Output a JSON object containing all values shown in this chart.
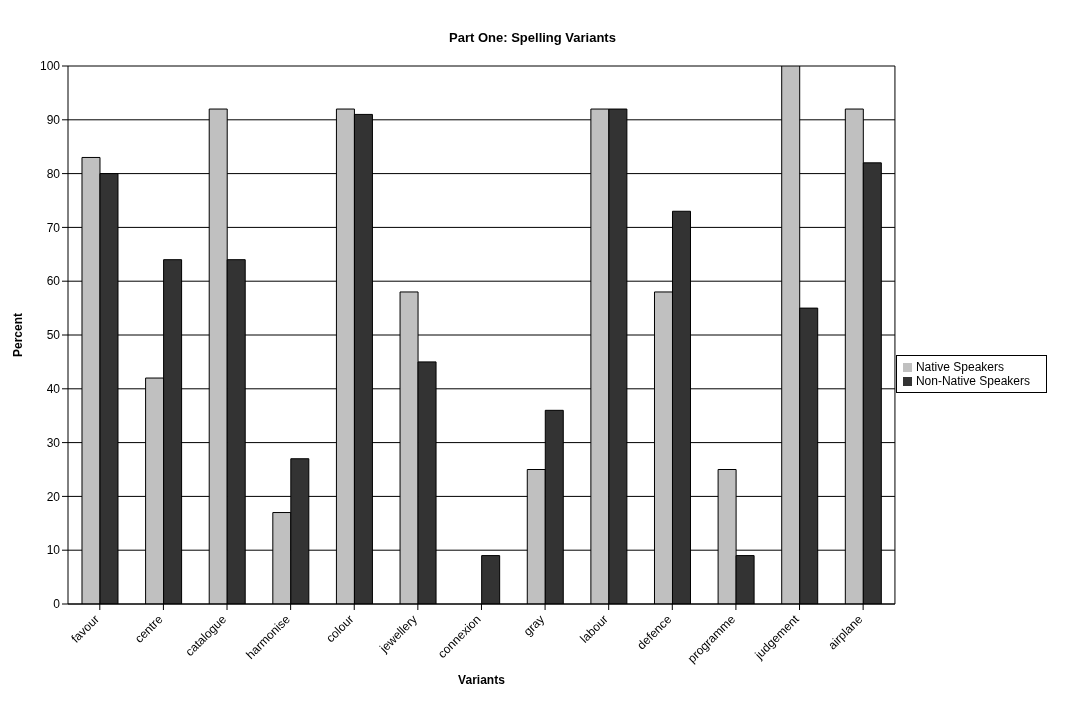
{
  "chart_data": {
    "type": "bar",
    "title": "Part One: Spelling Variants",
    "xlabel": "Variants",
    "ylabel": "Percent",
    "categories": [
      "favour",
      "centre",
      "catalogue",
      "harmonise",
      "colour",
      "jewellery",
      "connexion",
      "gray",
      "labour",
      "defence",
      "programme",
      "judgement",
      "airplane"
    ],
    "series": [
      {
        "name": "Native Speakers",
        "color": "#c0c0c0",
        "values": [
          83,
          42,
          92,
          17,
          92,
          58,
          0,
          25,
          92,
          58,
          25,
          100,
          92
        ]
      },
      {
        "name": "Non-Native Speakers",
        "color": "#333333",
        "values": [
          80,
          64,
          64,
          27,
          91,
          45,
          9,
          36,
          92,
          73,
          9,
          55,
          82
        ]
      }
    ],
    "ylim": [
      0,
      100
    ],
    "yticks": [
      0,
      10,
      20,
      30,
      40,
      50,
      60,
      70,
      80,
      90,
      100
    ],
    "grid": "y",
    "legend": "right"
  }
}
